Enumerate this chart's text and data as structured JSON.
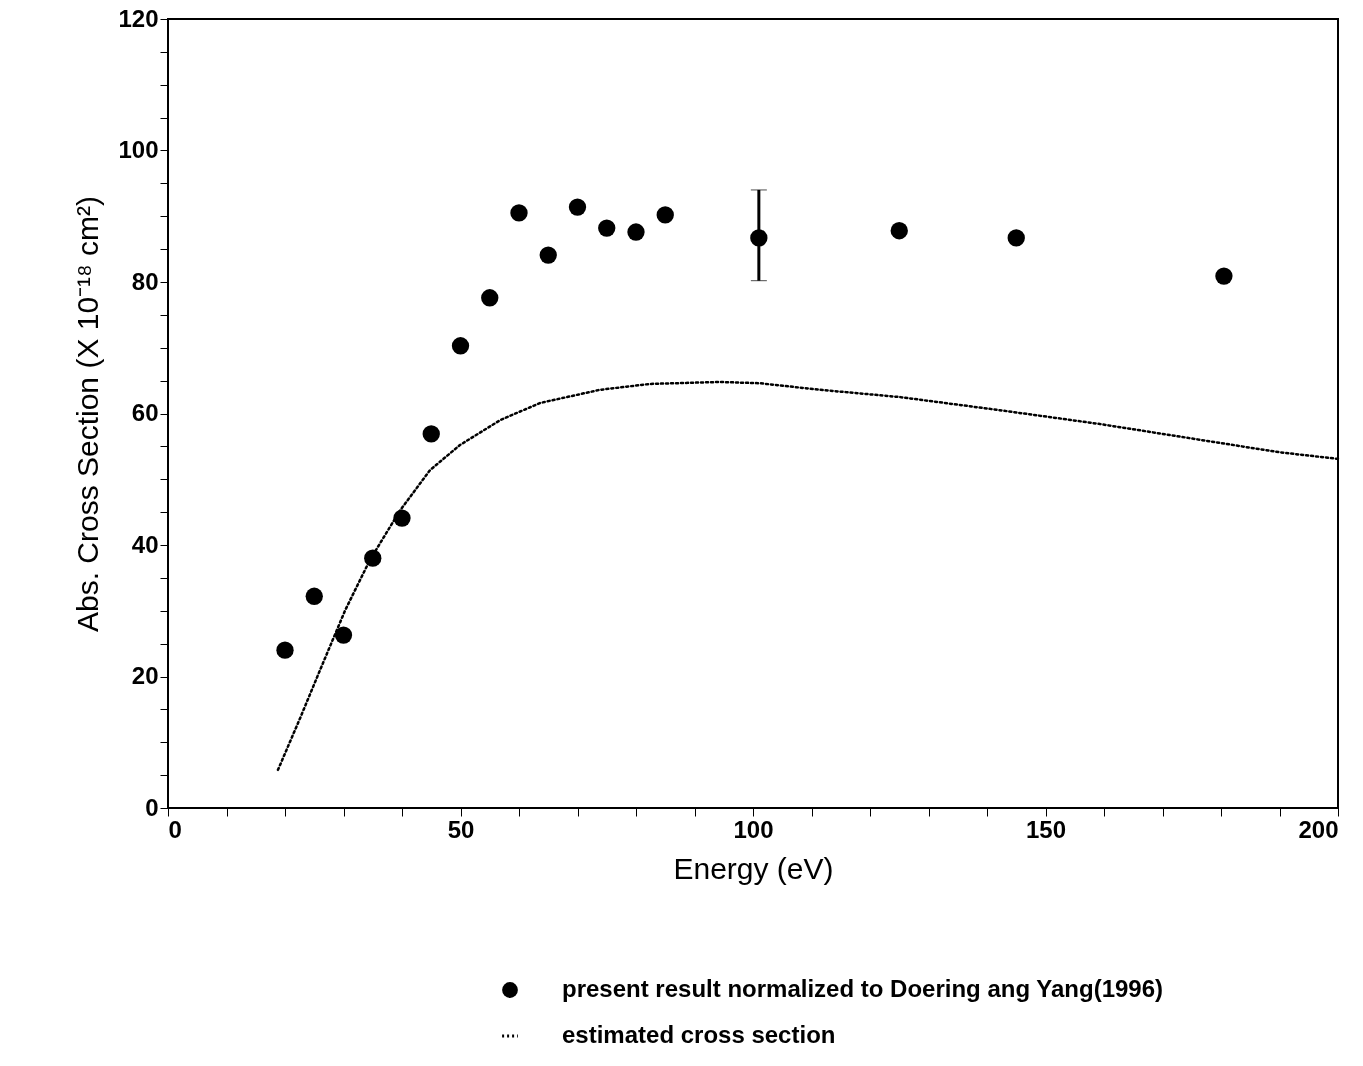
{
  "chart_data": {
    "type": "scatter",
    "xlabel": "Energy (eV)",
    "ylabel": "Abs. Cross Section  (X 10⁻¹⁸ cm²)",
    "xlim": [
      0,
      200
    ],
    "ylim": [
      0,
      120
    ],
    "xticks": [
      0,
      {
        "value": 10,
        "label": null
      },
      {
        "value": 20,
        "label": null
      },
      {
        "value": 30,
        "label": null
      },
      {
        "value": 40,
        "label": null
      },
      50,
      {
        "value": 60,
        "label": null
      },
      {
        "value": 70,
        "label": null
      },
      {
        "value": 80,
        "label": null
      },
      {
        "value": 90,
        "label": null
      },
      100,
      {
        "value": 110,
        "label": null
      },
      {
        "value": 120,
        "label": null
      },
      {
        "value": 130,
        "label": null
      },
      {
        "value": 140,
        "label": null
      },
      150,
      {
        "value": 160,
        "label": null
      },
      {
        "value": 170,
        "label": null
      },
      {
        "value": 180,
        "label": null
      },
      {
        "value": 190,
        "label": null
      },
      200
    ],
    "yticks": [
      0,
      {
        "value": 5,
        "label": null
      },
      {
        "value": 10,
        "label": null
      },
      {
        "value": 15,
        "label": null
      },
      20,
      {
        "value": 25,
        "label": null
      },
      {
        "value": 30,
        "label": null
      },
      {
        "value": 35,
        "label": null
      },
      40,
      {
        "value": 45,
        "label": null
      },
      {
        "value": 50,
        "label": null
      },
      {
        "value": 55,
        "label": null
      },
      60,
      {
        "value": 65,
        "label": null
      },
      {
        "value": 70,
        "label": null
      },
      {
        "value": 75,
        "label": null
      },
      80,
      {
        "value": 85,
        "label": null
      },
      {
        "value": 90,
        "label": null
      },
      {
        "value": 95,
        "label": null
      },
      100,
      {
        "value": 105,
        "label": null
      },
      {
        "value": 110,
        "label": null
      },
      {
        "value": 115,
        "label": null
      },
      120
    ],
    "grid": false,
    "legend": "bottom",
    "series": [
      {
        "name": "present result normalized to Doering ang Yang(1996)",
        "marker": "circle",
        "color": "#000000",
        "x": [
          20,
          25,
          30,
          35,
          40,
          45,
          50,
          55,
          60,
          65,
          70,
          75,
          80,
          85,
          101,
          125,
          145,
          180.5
        ],
        "values": [
          24.0,
          32.2,
          26.3,
          38.0,
          44.1,
          56.9,
          70.3,
          77.6,
          90.5,
          84.1,
          91.4,
          88.2,
          87.6,
          90.2,
          86.7,
          87.8,
          86.7,
          80.9
        ],
        "errors": [
          null,
          null,
          null,
          null,
          null,
          null,
          null,
          null,
          null,
          null,
          null,
          null,
          null,
          null,
          [
            80.2,
            94.0
          ],
          null,
          null,
          null
        ]
      },
      {
        "name": "estimated cross section",
        "type": "line",
        "marker": "none",
        "line_style": "dotted",
        "color": "#000000",
        "x": [
          18.8,
          22.6,
          26,
          30.3,
          34.5,
          39.7,
          44.8,
          49.9,
          56.8,
          63.6,
          73.8,
          82.4,
          94.4,
          101.2,
          111.5,
          125.1,
          142.2,
          159.3,
          176.4,
          190,
          200
        ],
        "values": [
          5.8,
          13.7,
          21,
          30.1,
          37.7,
          45.3,
          51.4,
          55.2,
          59,
          61.6,
          63.6,
          64.5,
          64.8,
          64.6,
          63.6,
          62.5,
          60.5,
          58.4,
          56,
          54.1,
          53.1
        ]
      }
    ]
  }
}
